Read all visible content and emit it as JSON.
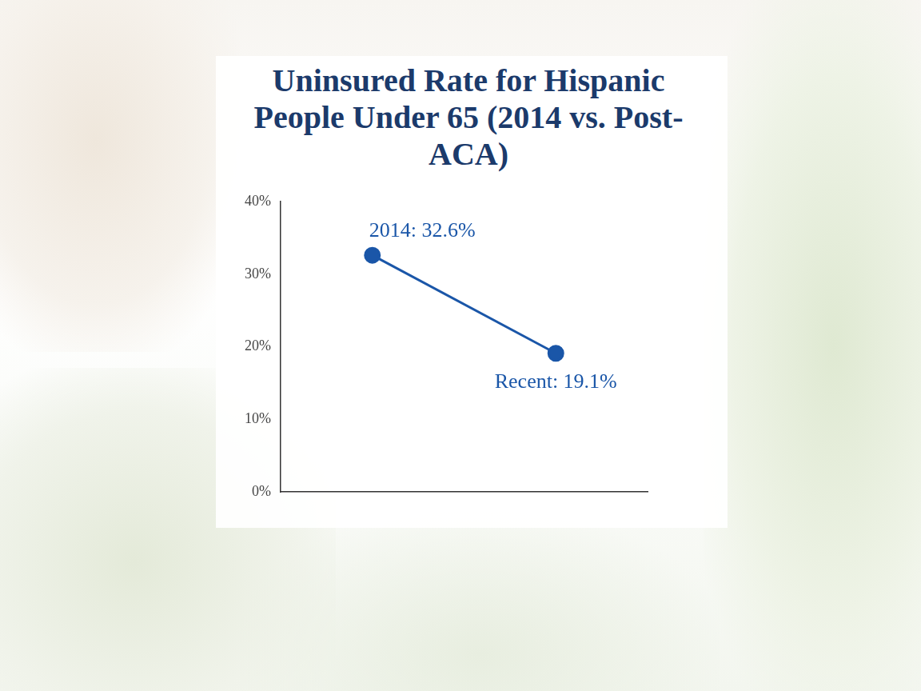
{
  "chart_data": {
    "type": "line",
    "title": "Uninsured Rate for Hispanic People Under 65 (2014 vs. Post-ACA)",
    "categories": [
      "2014",
      "Recent"
    ],
    "values": [
      32.6,
      19.1
    ],
    "value_labels": [
      "2014: 32.6%",
      "Recent: 19.1%"
    ],
    "data_labels": true,
    "color": "#1a56a8",
    "marker": "circle",
    "line_style": "solid",
    "ylim": [
      0,
      40
    ],
    "yticks": [
      {
        "value": 0,
        "label": "0%"
      },
      {
        "value": 10,
        "label": "10%"
      },
      {
        "value": 20,
        "label": "20%"
      },
      {
        "value": 30,
        "label": "30%"
      },
      {
        "value": 40,
        "label": "40%"
      }
    ],
    "grid": false,
    "tick_labels": "y"
  }
}
